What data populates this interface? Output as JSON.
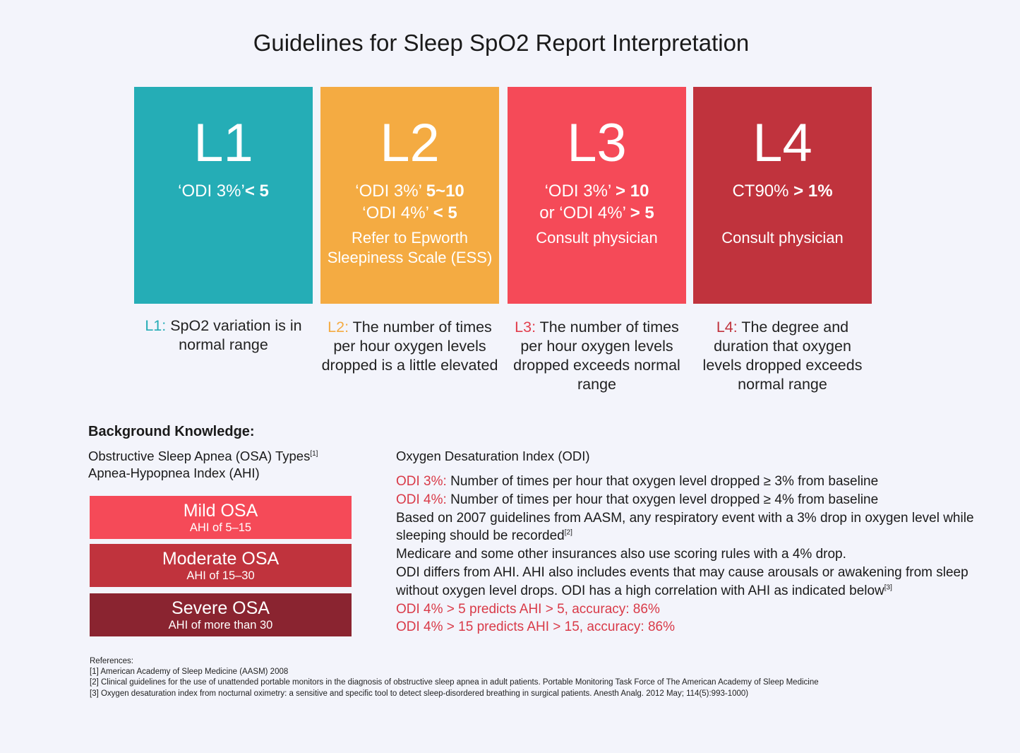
{
  "title": "Guidelines for Sleep SpO2 Report Interpretation",
  "colors": {
    "l1": "#25adb6",
    "l2": "#f4ab42",
    "l3": "#f54a58",
    "l4": "#c0333d",
    "severe": "#8a2430",
    "red_text": "#d93a48"
  },
  "cards": [
    {
      "level": "L1",
      "line1_pre": "‘ODI 3%’",
      "line1_bold": "< 5",
      "line2_pre": "",
      "line2_bold": "",
      "note": ""
    },
    {
      "level": "L2",
      "line1_pre": "‘ODI 3%’ ",
      "line1_bold": "5~10",
      "line2_pre": "‘ODI 4%’ ",
      "line2_bold": "< 5",
      "note": "Refer to Epworth Sleepiness Scale (ESS)"
    },
    {
      "level": "L3",
      "line1_pre": "‘ODI 3%’ ",
      "line1_bold": "> 10",
      "line2_pre": "or ‘ODI 4%’ ",
      "line2_bold": "> 5",
      "note": "Consult physician"
    },
    {
      "level": "L4",
      "line1_pre": "CT90% ",
      "line1_bold": "> 1%",
      "line2_pre": "",
      "line2_bold": "",
      "note": "Consult physician"
    }
  ],
  "descriptions": [
    {
      "label": "L1:",
      "text": " SpO2 variation is in normal range"
    },
    {
      "label": "L2:",
      "text": " The number of times per hour oxygen levels dropped is a little elevated"
    },
    {
      "label": "L3:",
      "text": " The number of times per hour oxygen levels dropped exceeds normal range"
    },
    {
      "label": "L4:",
      "text": " The degree and duration that oxygen levels dropped exceeds normal range"
    }
  ],
  "background": {
    "title": "Background Knowledge:",
    "osa_types": "Obstructive Sleep Apnea (OSA) Types",
    "osa_types_ref": "[1]",
    "ahi_label": "Apnea-Hypopnea Index (AHI)",
    "osa": [
      {
        "name": "Mild OSA",
        "ahi": "AHI of 5–15"
      },
      {
        "name": "Moderate OSA",
        "ahi": "AHI of 15–30"
      },
      {
        "name": "Severe OSA",
        "ahi": "AHI of more than 30"
      }
    ]
  },
  "odi": {
    "title": "Oxygen Desaturation Index (ODI)",
    "odi3_label": "ODI 3%:",
    "odi3_text": " Number of times per hour that oxygen level dropped ≥ 3% from baseline",
    "odi4_label": "ODI 4%:",
    "odi4_text": " Number of times per hour that oxygen level dropped ≥ 4% from baseline",
    "aasm_text": "Based on 2007 guidelines from AASM, any respiratory event with a 3% drop in oxygen level while sleeping should be recorded",
    "aasm_ref": "[2]",
    "medicare_text": "Medicare and some other insurances also use scoring rules with a 4% drop.",
    "differs_text": "ODI differs from AHI. AHI also includes events that may cause arousals or awakening from sleep without oxygen level drops. ODI has a high correlation with AHI as indicated below",
    "differs_ref": "[3]",
    "predict1": "ODI 4% > 5 predicts AHI > 5, accuracy: 86%",
    "predict2": "ODI 4% > 15 predicts AHI > 15, accuracy: 86%"
  },
  "references": {
    "heading": "References:",
    "items": [
      "[1] American Academy of Sleep Medicine (AASM) 2008",
      "[2] Clinical guidelines for the use of unattended portable monitors in the diagnosis of obstructive sleep apnea in adult patients. Portable Monitoring Task Force of The American Academy of Sleep Medicine",
      "[3] Oxygen desaturation index from nocturnal oximetry: a sensitive and specific tool to detect sleep-disordered breathing in surgical patients. Anesth Analg. 2012 May; 114(5):993-1000)"
    ]
  }
}
